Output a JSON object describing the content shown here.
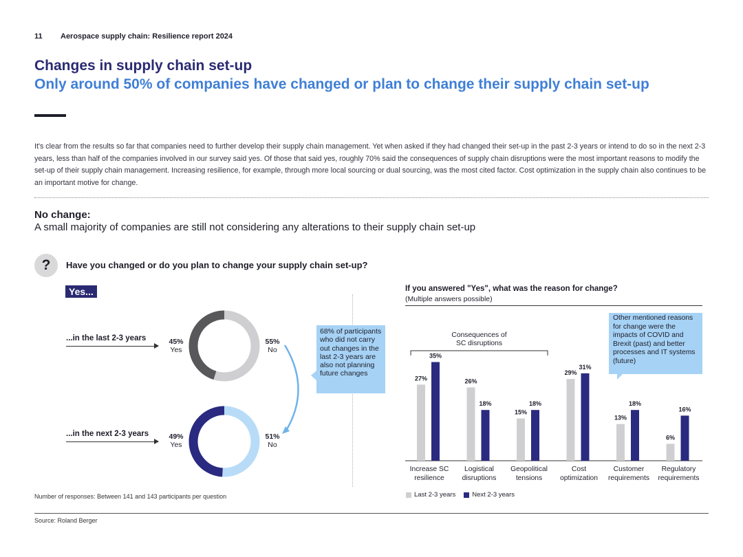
{
  "header": {
    "page_number": "11",
    "report_title": "Aerospace supply chain: Resilience report 2024"
  },
  "title": "Changes in supply chain set-up",
  "subtitle": "Only around 50% of companies have changed or plan to change their supply chain set-up",
  "intro": "It's clear from the results so far that companies need to further develop their supply chain management. Yet when asked if they had changed their set-up in the past 2-3 years or intend to do so in the next 2-3 years, less than half of the companies involved in our survey said yes. Of those that said yes, roughly 70% said the consequences of supply chain disruptions were the most important reasons to modify the set-up of their supply chain management. Increasing resilience, for example, through more local sourcing or dual sourcing, was the most cited factor. Cost optimization in the supply chain also continues to be an important motive for change.",
  "section": {
    "heading": "No change:",
    "subheading": "A small majority of companies are still not considering any alterations to their supply chain set-up"
  },
  "question": {
    "icon": "?",
    "text": "Have you changed or do you plan to change your supply chain set-up?"
  },
  "yes_badge": "Yes...",
  "donuts": [
    {
      "label": "...in the last 2-3 years",
      "yes_value": "45%",
      "yes_label": "Yes",
      "no_value": "55%",
      "no_label": "No",
      "yes": 45,
      "no": 55,
      "yes_color": "#58585a",
      "no_color": "#cfcfd1"
    },
    {
      "label": "...in the next 2-3 years",
      "yes_value": "49%",
      "yes_label": "Yes",
      "no_value": "51%",
      "no_label": "No",
      "yes": 49,
      "no": 51,
      "yes_color": "#2a2a80",
      "no_color": "#b8dcf7"
    }
  ],
  "callout_left": "68% of participants who did not carry out changes in the last 2-3 years are also not planning future changes",
  "callout_right": "Other mentioned reasons for change were the impacts of COVID and Brexit (past) and better processes and IT systems (future)",
  "chart_data": {
    "type": "bar",
    "title": "If you answered \"Yes\", what was the reason for change?",
    "subtitle": "(Multiple answers possible)",
    "categories": [
      [
        "Increase SC",
        "resilience"
      ],
      [
        "Logistical",
        "disruptions"
      ],
      [
        "Geopolitical",
        "tensions"
      ],
      [
        "Cost",
        "optimization"
      ],
      [
        "Customer",
        "requirements"
      ],
      [
        "Regulatory",
        "requirements"
      ]
    ],
    "series": [
      {
        "name": "Last 2-3 years",
        "color": "#cfcfd1",
        "values": [
          27,
          26,
          15,
          29,
          13,
          6
        ],
        "labels": [
          "27%",
          "26%",
          "15%",
          "29%",
          "13%",
          "6%"
        ]
      },
      {
        "name": "Next 2-3 years",
        "color": "#2a2a80",
        "values": [
          35,
          18,
          18,
          31,
          18,
          16
        ],
        "labels": [
          "35%",
          "18%",
          "18%",
          "31%",
          "18%",
          "16%"
        ]
      }
    ],
    "group_annotation": {
      "text": [
        "Consequences of",
        "SC disruptions"
      ],
      "span": [
        0,
        2
      ]
    },
    "ylim": [
      0,
      35
    ]
  },
  "response_note": "Number of responses: Between 141 and 143 participants per question",
  "source": "Source: Roland Berger"
}
